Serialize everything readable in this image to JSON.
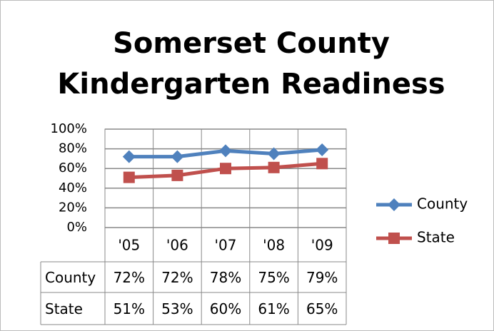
{
  "chart_data": {
    "type": "line",
    "title": [
      "Somerset County",
      "Kindergarten Readiness"
    ],
    "categories": [
      "'05",
      "'06",
      "'07",
      "'08",
      "'09"
    ],
    "series": [
      {
        "name": "County",
        "color": "#4f81bd",
        "marker": "diamond",
        "values": [
          72,
          72,
          78,
          75,
          79
        ],
        "value_labels": [
          "72%",
          "72%",
          "78%",
          "75%",
          "79%"
        ]
      },
      {
        "name": "State",
        "color": "#c0504d",
        "marker": "square",
        "values": [
          51,
          53,
          60,
          61,
          65
        ],
        "value_labels": [
          "51%",
          "53%",
          "60%",
          "61%",
          "65%"
        ]
      }
    ],
    "ylim": [
      0,
      100
    ],
    "yticks": [
      {
        "value": 0,
        "label": "0%"
      },
      {
        "value": 20,
        "label": "20%"
      },
      {
        "value": 40,
        "label": "40%"
      },
      {
        "value": 60,
        "label": "60%"
      },
      {
        "value": 80,
        "label": "80%"
      },
      {
        "value": 100,
        "label": "100%"
      }
    ],
    "grid": true,
    "legend": "right",
    "data_table": true
  }
}
